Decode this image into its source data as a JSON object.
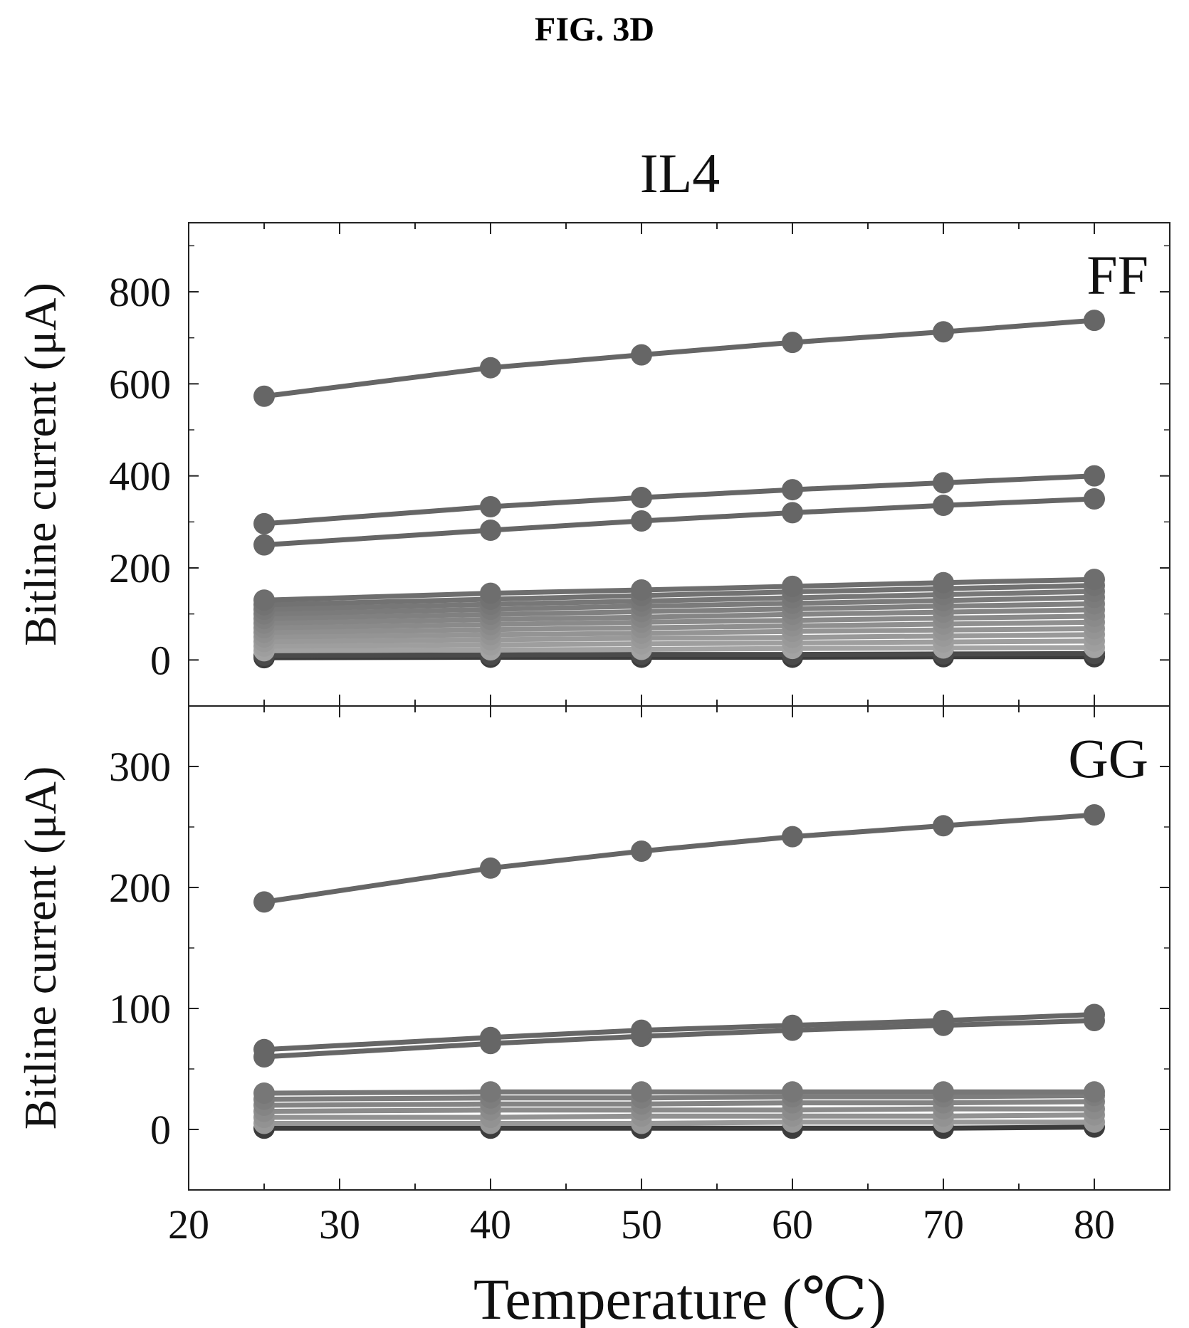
{
  "figure_label": "FIG. 3D",
  "chart_data": [
    {
      "type": "line",
      "panel": "top",
      "title": "IL4",
      "annotation": "FF",
      "xlabel": "Temperature (℃)",
      "ylabel": "Bitline current (μA)",
      "xlim": [
        20,
        85
      ],
      "ylim": [
        -100,
        950
      ],
      "x_ticks": [
        20,
        30,
        40,
        50,
        60,
        70,
        80
      ],
      "y_ticks": [
        0,
        200,
        400,
        600,
        800
      ],
      "grid": false,
      "x": [
        25,
        40,
        50,
        60,
        70,
        80
      ],
      "series": [
        {
          "values": [
            573,
            635,
            663,
            690,
            713,
            738
          ],
          "color": "#666666"
        },
        {
          "values": [
            296,
            333,
            353,
            370,
            385,
            400
          ],
          "color": "#666666"
        },
        {
          "values": [
            250,
            282,
            302,
            320,
            336,
            350
          ],
          "color": "#666666"
        },
        {
          "values": [
            130,
            145,
            152,
            160,
            168,
            175
          ],
          "color": "#6e6e6e"
        },
        {
          "values": [
            120,
            132,
            140,
            148,
            155,
            162
          ],
          "color": "#727272"
        },
        {
          "values": [
            110,
            121,
            128,
            135,
            142,
            149
          ],
          "color": "#777777"
        },
        {
          "values": [
            100,
            110,
            117,
            123,
            129,
            136
          ],
          "color": "#7b7b7b"
        },
        {
          "values": [
            90,
            99,
            105,
            111,
            117,
            122
          ],
          "color": "#808080"
        },
        {
          "values": [
            80,
            88,
            93,
            99,
            104,
            109
          ],
          "color": "#858585"
        },
        {
          "values": [
            70,
            77,
            82,
            86,
            91,
            95
          ],
          "color": "#8a8a8a"
        },
        {
          "values": [
            60,
            66,
            70,
            74,
            78,
            82
          ],
          "color": "#8f8f8f"
        },
        {
          "values": [
            50,
            55,
            58,
            62,
            65,
            68
          ],
          "color": "#949494"
        },
        {
          "values": [
            40,
            44,
            47,
            49,
            52,
            55
          ],
          "color": "#999999"
        },
        {
          "values": [
            30,
            33,
            35,
            37,
            39,
            41
          ],
          "color": "#9e9e9e"
        },
        {
          "values": [
            20,
            22,
            23,
            25,
            26,
            27
          ],
          "color": "#a3a3a3"
        },
        {
          "values": [
            10,
            11,
            12,
            12,
            13,
            14
          ],
          "color": "#4a4a4a"
        },
        {
          "values": [
            5,
            6,
            6,
            6,
            7,
            7
          ],
          "color": "#3c3c3c"
        }
      ]
    },
    {
      "type": "line",
      "panel": "bottom",
      "annotation": "GG",
      "xlabel": "Temperature (℃)",
      "ylabel": "Bitline current (μA)",
      "xlim": [
        20,
        85
      ],
      "ylim": [
        -50,
        350
      ],
      "x_ticks": [
        20,
        30,
        40,
        50,
        60,
        70,
        80
      ],
      "y_ticks": [
        0,
        100,
        200,
        300
      ],
      "grid": false,
      "x": [
        25,
        40,
        50,
        60,
        70,
        80
      ],
      "series": [
        {
          "values": [
            188,
            216,
            230,
            242,
            251,
            260
          ],
          "color": "#666666"
        },
        {
          "values": [
            66,
            76,
            82,
            86,
            90,
            95
          ],
          "color": "#666666"
        },
        {
          "values": [
            60,
            71,
            77,
            82,
            86,
            90
          ],
          "color": "#666666"
        },
        {
          "values": [
            30,
            31,
            31,
            31,
            31,
            31
          ],
          "color": "#777777"
        },
        {
          "values": [
            25,
            26,
            26,
            27,
            27,
            28
          ],
          "color": "#7d7d7d"
        },
        {
          "values": [
            20,
            21,
            21,
            22,
            22,
            23
          ],
          "color": "#848484"
        },
        {
          "values": [
            15,
            16,
            16,
            16,
            17,
            17
          ],
          "color": "#8b8b8b"
        },
        {
          "values": [
            10,
            10,
            11,
            11,
            11,
            12
          ],
          "color": "#929292"
        },
        {
          "values": [
            5,
            5,
            5,
            6,
            6,
            6
          ],
          "color": "#999999"
        },
        {
          "values": [
            1,
            1,
            1,
            1,
            1,
            2
          ],
          "color": "#3c3c3c"
        }
      ]
    }
  ]
}
